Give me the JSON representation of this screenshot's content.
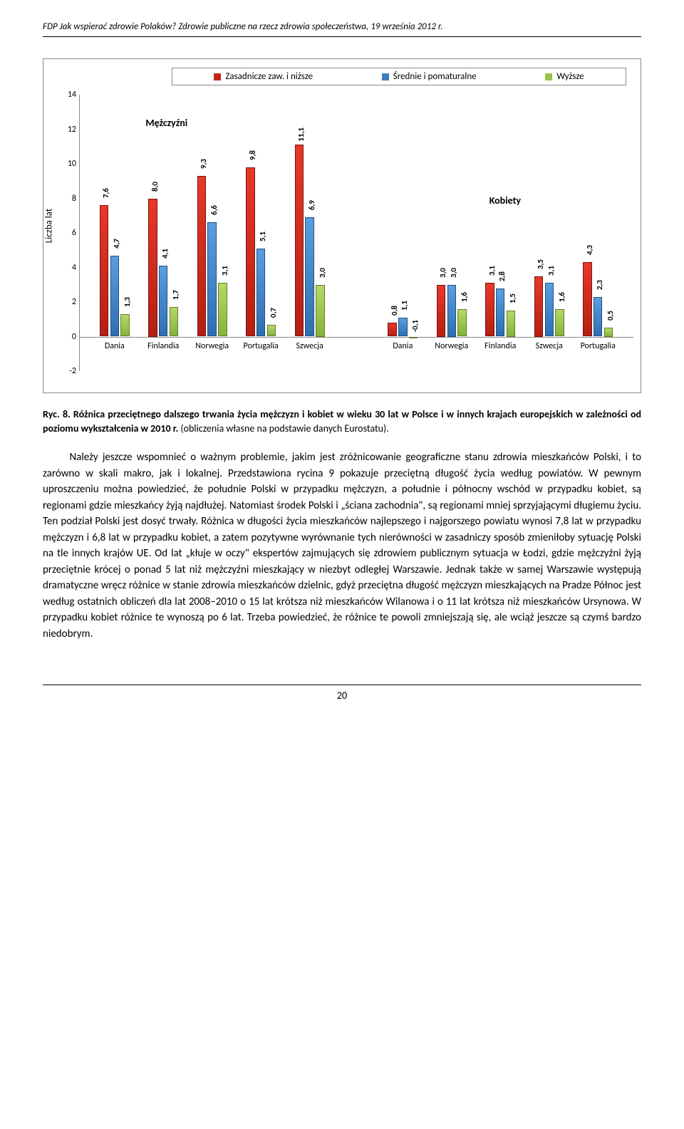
{
  "header": "FDP Jak wspierać zdrowie Polaków? Zdrowie publiczne na rzecz zdrowia społeczeństwa, 19 września 2012 r.",
  "chart": {
    "y_label": "Liczba lat",
    "y_min": -2,
    "y_max": 14,
    "y_step": 2,
    "legend": [
      {
        "label": "Zasadnicze zaw. i niższe",
        "color": "#c0281c"
      },
      {
        "label": "Średnie i pomaturalne",
        "color": "#3f7fc0"
      },
      {
        "label": "Wyższe",
        "color": "#96c44a"
      }
    ],
    "group_labels": {
      "left": "Mężczyźni",
      "right": "Kobiety"
    },
    "colors": {
      "red": "#c0281c",
      "blue": "#3f7fc0",
      "green": "#96c44a"
    },
    "left_categories": [
      {
        "name": "Dania",
        "v": [
          7.6,
          4.7,
          1.3
        ]
      },
      {
        "name": "Finlandia",
        "v": [
          8.0,
          4.1,
          1.7
        ]
      },
      {
        "name": "Norwegia",
        "v": [
          9.3,
          6.6,
          3.1
        ]
      },
      {
        "name": "Portugalia",
        "v": [
          9.8,
          5.1,
          0.7
        ]
      },
      {
        "name": "Szwecja",
        "v": [
          11.1,
          6.9,
          3.0
        ]
      }
    ],
    "right_categories": [
      {
        "name": "Dania",
        "v": [
          0.8,
          1.1,
          -0.1
        ]
      },
      {
        "name": "Norwegia",
        "v": [
          3.0,
          3.0,
          1.6
        ]
      },
      {
        "name": "Finlandia",
        "v": [
          3.1,
          2.8,
          1.5
        ]
      },
      {
        "name": "Szwecja",
        "v": [
          3.5,
          3.1,
          1.6
        ]
      },
      {
        "name": "Portugalia",
        "v": [
          4.3,
          2.3,
          0.5
        ]
      }
    ]
  },
  "caption": {
    "prefix": "Ryc. 8. Różnica przeciętnego dalszego trwania życia mężczyzn i kobiet w wieku 30 lat w Polsce i w innych krajach europejskich w zależności od poziomu wykształcenia w 2010 r.",
    "suffix": " (obliczenia własne na podstawie danych Eurostatu)."
  },
  "body": "Należy jeszcze wspomnieć o ważnym problemie, jakim jest zróżnicowanie geograficzne stanu zdrowia mieszkańców Polski, i to zarówno w skali makro, jak i lokalnej. Przedstawiona rycina 9 pokazuje przeciętną długość życia według powiatów. W pewnym uproszczeniu można powiedzieć, że południe Polski w przypadku mężczyzn, a południe i północny wschód w przypadku kobiet, są regionami gdzie mieszkańcy żyją najdłużej. Natomiast środek Polski i „ściana zachodnia\", są regionami mniej sprzyjającymi długiemu życiu. Ten podział Polski jest dosyć trwały. Różnica w długości życia mieszkańców najlepszego i najgorszego powiatu wynosi 7,8 lat w przypadku mężczyzn i 6,8 lat w przypadku kobiet, a zatem pozytywne wyrównanie tych nierówności w zasadniczy sposób zmieniłoby sytuację Polski na tle innych krajów UE. Od lat „kłuje w oczy\" ekspertów zajmujących się zdrowiem publicznym sytuacja w Łodzi, gdzie mężczyźni żyją przeciętnie krócej o ponad 5 lat niż mężczyźni mieszkający w niezbyt odległej Warszawie. Jednak także w samej Warszawie występują dramatyczne wręcz różnice w stanie zdrowia mieszkańców dzielnic, gdyż przeciętna długość mężczyzn mieszkających na Pradze Północ jest według ostatnich obliczeń dla lat 2008–2010 o 15 lat krótsza niż mieszkańców Wilanowa i o 11 lat krótsza niż mieszkańców Ursynowa. W przypadku kobiet różnice te wynoszą po 6 lat. Trzeba powiedzieć, że różnice te powoli zmniejszają się, ale wciąż jeszcze są czymś bardzo niedobrym.",
  "page_number": "20"
}
